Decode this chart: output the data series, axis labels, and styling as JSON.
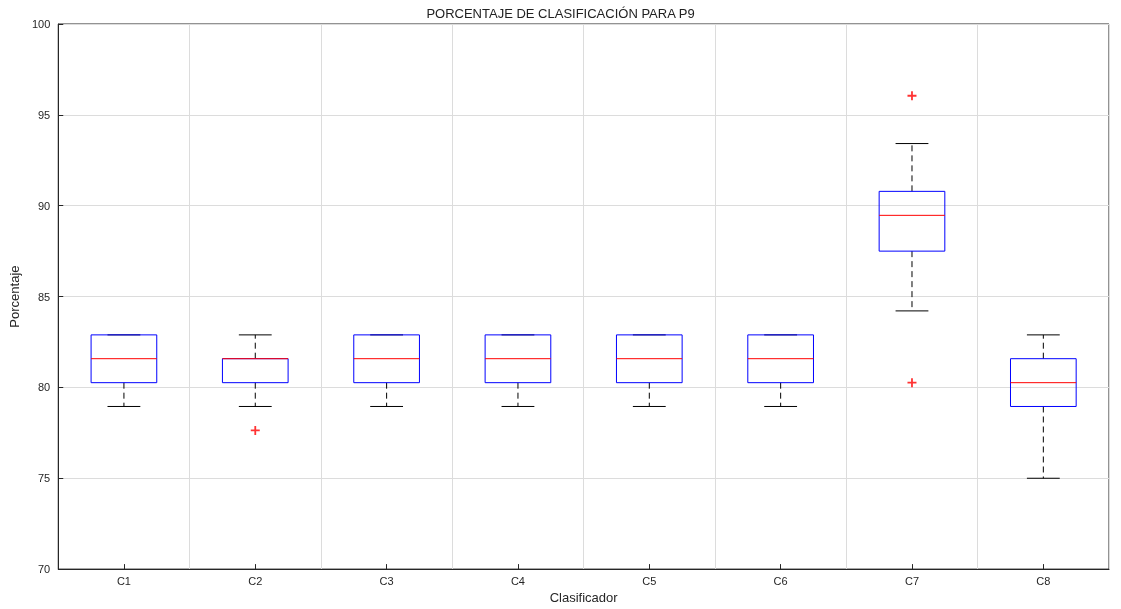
{
  "chart_data": {
    "type": "box",
    "title": "PORCENTAJE DE CLASIFICACIÓN PARA P9",
    "xlabel": "Clasificador",
    "ylabel": "Porcentaje",
    "categories": [
      "C1",
      "C2",
      "C3",
      "C4",
      "C5",
      "C6",
      "C7",
      "C8"
    ],
    "color": "#0000ff",
    "boxes": [
      {
        "low": 78.95,
        "q1": 80.26,
        "median": 81.58,
        "q3": 82.89,
        "high": 82.89
      },
      {
        "low": 78.95,
        "q1": 80.26,
        "median": 81.58,
        "q3": 81.58,
        "high": 82.89,
        "outliers": [
          77.63
        ]
      },
      {
        "low": 78.95,
        "q1": 80.26,
        "median": 81.58,
        "q3": 82.89,
        "high": 82.89
      },
      {
        "low": 78.95,
        "q1": 80.26,
        "median": 81.58,
        "q3": 82.89,
        "high": 82.89
      },
      {
        "low": 78.95,
        "q1": 80.26,
        "median": 81.58,
        "q3": 82.89,
        "high": 82.89
      },
      {
        "low": 78.95,
        "q1": 80.26,
        "median": 81.58,
        "q3": 82.89,
        "high": 82.89
      },
      {
        "low": 84.21,
        "q1": 87.5,
        "median": 89.47,
        "q3": 90.79,
        "high": 93.42,
        "outliers": [
          96.05,
          80.26
        ]
      },
      {
        "low": 75,
        "q1": 78.95,
        "median": 80.26,
        "q3": 81.58,
        "high": 82.89
      }
    ],
    "ylim": [
      70,
      100
    ],
    "yticks": [
      70,
      75,
      80,
      85,
      90,
      95,
      100
    ],
    "grid": true
  }
}
